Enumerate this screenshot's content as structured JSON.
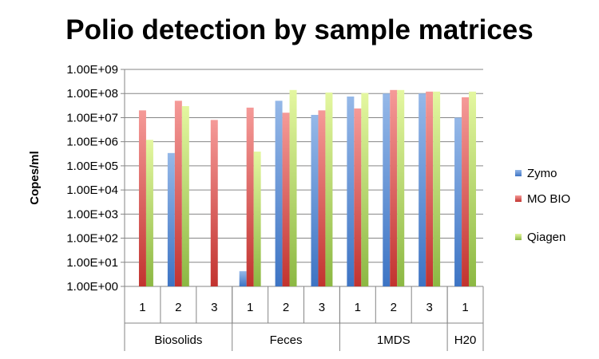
{
  "chart_data": {
    "type": "bar",
    "title": "Polio detection by sample matrices",
    "xlabel": "",
    "ylabel": "Copes/ml",
    "yscale": "log",
    "ylim": [
      1,
      1000000000
    ],
    "yticks": [
      "1.00E+00",
      "1.00E+01",
      "1.00E+02",
      "1.00E+03",
      "1.00E+04",
      "1.00E+05",
      "1.00E+06",
      "1.00E+07",
      "1.00E+08",
      "1.00E+09"
    ],
    "grid": true,
    "legend_position": "right",
    "groups": [
      {
        "label": "Biosolids",
        "categories": [
          "1",
          "2",
          "3"
        ]
      },
      {
        "label": "Feces",
        "categories": [
          "1",
          "2",
          "3"
        ]
      },
      {
        "label": "1MDS",
        "categories": [
          "1",
          "2",
          "3"
        ]
      },
      {
        "label": "H20",
        "categories": [
          "1"
        ]
      }
    ],
    "categories": [
      "1",
      "2",
      "3",
      "1",
      "2",
      "3",
      "1",
      "2",
      "3",
      "1"
    ],
    "series": [
      {
        "name": "Zymo",
        "color": "#4f81bd",
        "values": [
          null,
          340000,
          null,
          4.3,
          50000000,
          13000000,
          75000000,
          100000000,
          100000000,
          10000000
        ]
      },
      {
        "name": "MO BIO",
        "color": "#c0504d",
        "values": [
          20000000,
          50000000,
          8000000,
          26000000,
          16000000,
          20000000,
          24000000,
          140000000,
          120000000,
          70000000
        ]
      },
      {
        "name": "Qiagen",
        "color": "#9bbb59",
        "values": [
          1200000,
          30000000,
          null,
          390000,
          140000000,
          110000000,
          105000000,
          140000000,
          120000000,
          120000000
        ]
      }
    ]
  }
}
